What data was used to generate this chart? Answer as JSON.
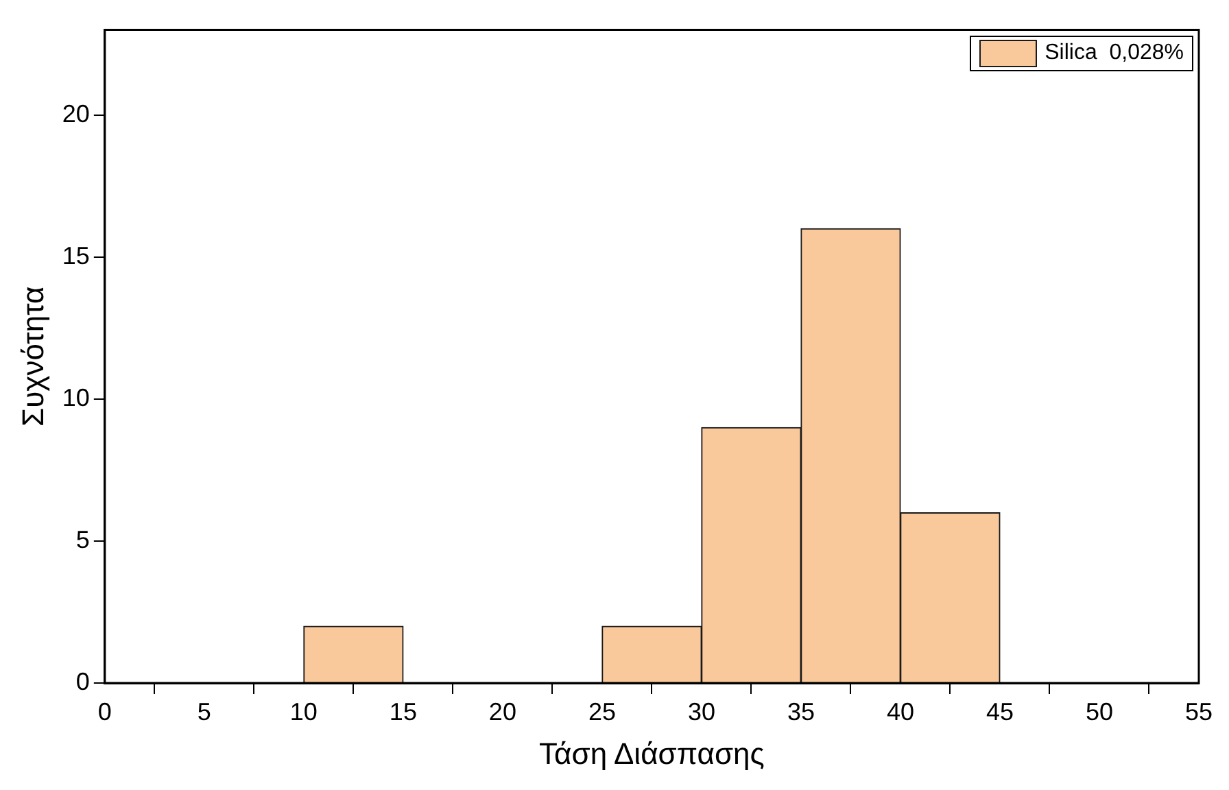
{
  "chart_data": {
    "type": "histogram",
    "xlabel": "Τάση Διάσπασης",
    "ylabel": "Συχνότητα",
    "bins": [
      0,
      5,
      10,
      15,
      20,
      25,
      30,
      35,
      40,
      45,
      50,
      55
    ],
    "series": [
      {
        "name": "Silica  0,028%",
        "color": "#f9c89b",
        "values": [
          0,
          0,
          2,
          0,
          0,
          2,
          9,
          16,
          6,
          0,
          0
        ]
      }
    ],
    "xlim": [
      0,
      55
    ],
    "xticks": [
      0,
      5,
      10,
      15,
      20,
      25,
      30,
      35,
      40,
      45,
      50,
      55
    ],
    "ylim": [
      0,
      23
    ],
    "yticks": [
      0,
      5,
      10,
      15,
      20
    ],
    "grid": false,
    "legend": "top right"
  }
}
